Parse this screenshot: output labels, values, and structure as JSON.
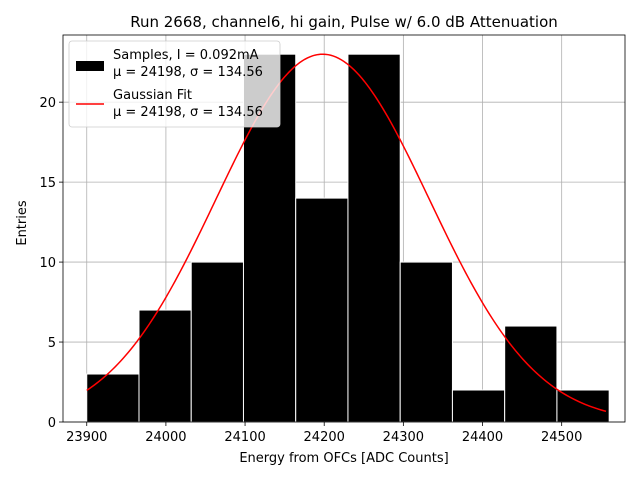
{
  "chart_data": {
    "type": "bar",
    "title": "Run 2668, channel6, hi gain, Pulse w/ 6.0 dB Attenuation",
    "xlabel": "Energy from OFCs [ADC Counts]",
    "ylabel": "Entries",
    "xlim": [
      23870,
      24580
    ],
    "ylim": [
      0,
      24.2
    ],
    "grid": true,
    "legend_position": "top-left",
    "xticks": [
      23900,
      24000,
      24100,
      24200,
      24300,
      24400,
      24500
    ],
    "yticks": [
      0,
      5,
      10,
      15,
      20
    ],
    "bin_edges": [
      23900,
      23966,
      24032,
      24098,
      24164,
      24230,
      24296,
      24362,
      24428,
      24494,
      24560
    ],
    "histogram": {
      "name": "Samples, I = 0.092mA",
      "color": "#000000",
      "values": [
        3,
        7,
        10,
        23,
        14,
        23,
        10,
        2,
        6,
        2
      ]
    },
    "fit": {
      "name": "Gaussian Fit",
      "color": "#ff0000",
      "mu": 24198,
      "sigma": 134.56,
      "amplitude": 23,
      "x_range": [
        23900,
        24556
      ]
    },
    "legend": [
      {
        "line1": "Samples, I = 0.092mA",
        "line2": "μ = 24198, σ = 134.56"
      },
      {
        "line1": "Gaussian Fit",
        "line2": "μ = 24198, σ = 134.56"
      }
    ]
  }
}
